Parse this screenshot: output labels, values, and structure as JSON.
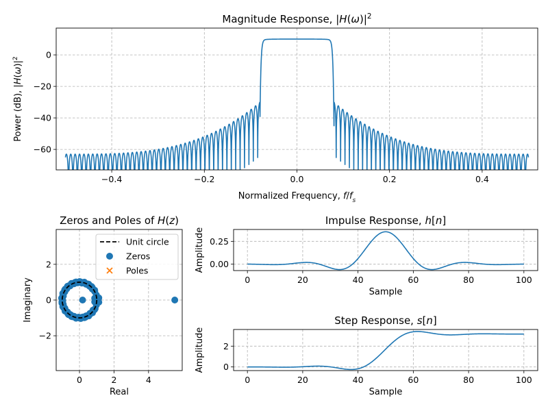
{
  "chart_data": [
    {
      "id": "magnitude",
      "type": "line",
      "title": "Magnitude Response, |H(ω)|²",
      "xlabel": "Normalized Frequency, f/f_s",
      "ylabel": "Power (dB), |H(ω)|²",
      "xlim": [
        -0.52,
        0.52
      ],
      "ylim": [
        -73,
        17
      ],
      "xticks": [
        -0.4,
        -0.2,
        0.0,
        0.2,
        0.4
      ],
      "xtick_labels": [
        "−0.4",
        "−0.2",
        "0.0",
        "0.2",
        "0.4"
      ],
      "yticks": [
        0,
        -20,
        -40,
        -60
      ],
      "ytick_labels": [
        "0",
        "−20",
        "−40",
        "−60"
      ],
      "grid": true,
      "color": "#1f77b4",
      "passband_edge": 0.08,
      "passband_level_db": 10,
      "first_sidelobe_db": -30,
      "edge_sidelobe_db": -63,
      "null_floor_db": -73,
      "x_range": [
        -0.5,
        0.5
      ]
    },
    {
      "id": "pole-zero",
      "type": "scatter",
      "title": "Zeros and Poles of H(z)",
      "xlabel": "Real",
      "ylabel": "Imaginary",
      "xlim": [
        -1.35,
        5.95
      ],
      "ylim": [
        -3.95,
        3.95
      ],
      "xticks": [
        0,
        2,
        4
      ],
      "xtick_labels": [
        "0",
        "2",
        "4"
      ],
      "yticks": [
        2,
        0,
        -2
      ],
      "ytick_labels": [
        "2",
        "0",
        "−2"
      ],
      "grid": true,
      "legend": {
        "position": "top-right",
        "entries": [
          "Unit circle",
          "Zeros",
          "Poles"
        ]
      },
      "zeros": {
        "name": "Zeros",
        "color": "#1f77b4",
        "unit_circle_zero_count": 80,
        "unit_circle_gap_angle_deg": 28,
        "extra_points": [
          {
            "x": 0.18,
            "y": 0
          },
          {
            "x": 5.52,
            "y": 0
          },
          {
            "x": 0.98,
            "y": 0.28
          },
          {
            "x": 0.98,
            "y": -0.28
          },
          {
            "x": 1.12,
            "y": 0.12
          },
          {
            "x": 1.12,
            "y": -0.12
          },
          {
            "x": 0.88,
            "y": 0.1
          },
          {
            "x": 0.88,
            "y": -0.1
          }
        ]
      },
      "poles": {
        "name": "Poles",
        "color": "#ff7f0e"
      },
      "unit_circle": {
        "name": "Unit circle",
        "radius": 1
      }
    },
    {
      "id": "impulse",
      "type": "line",
      "title": "Impulse Response, h[n]",
      "xlabel": "Sample",
      "ylabel": "Amplitude",
      "xlim": [
        -5,
        105
      ],
      "ylim": [
        -0.07,
        0.38
      ],
      "xticks": [
        0,
        20,
        40,
        60,
        80,
        100
      ],
      "xtick_labels": [
        "0",
        "20",
        "40",
        "60",
        "80",
        "100"
      ],
      "yticks": [
        0.25,
        0.0
      ],
      "ytick_labels": [
        "0.25",
        "0.00"
      ],
      "grid": true,
      "color": "#1f77b4",
      "n_range": [
        0,
        100
      ],
      "center": 50,
      "peak": 0.355,
      "mainlobe_halfwidth": 12,
      "min_value": -0.04
    },
    {
      "id": "step",
      "type": "line",
      "title": "Step Response, s[n]",
      "xlabel": "Sample",
      "ylabel": "Amplitude",
      "xlim": [
        -5,
        105
      ],
      "ylim": [
        -0.35,
        3.6
      ],
      "xticks": [
        0,
        20,
        40,
        60,
        80,
        100
      ],
      "xtick_labels": [
        "0",
        "20",
        "40",
        "60",
        "80",
        "100"
      ],
      "yticks": [
        2,
        0
      ],
      "ytick_labels": [
        "2",
        "0"
      ],
      "grid": true,
      "color": "#1f77b4",
      "n_range": [
        0,
        100
      ],
      "final_value": 3.16,
      "overshoot_peak": 3.36,
      "dip_value": -0.25
    }
  ]
}
